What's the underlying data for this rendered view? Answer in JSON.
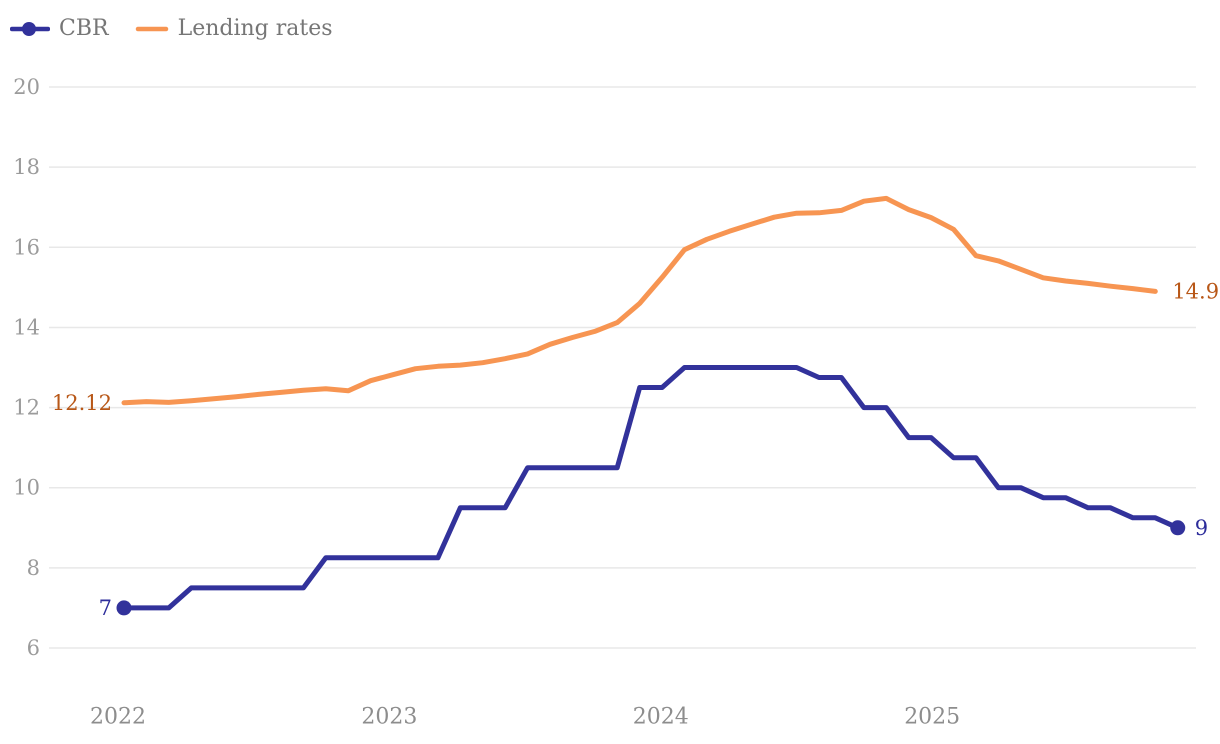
{
  "legend": {
    "items": [
      {
        "label": "CBR"
      },
      {
        "label": "Lending rates"
      }
    ]
  },
  "axis": {
    "tick_label_color": "#9B9B9B",
    "year_label_color": "#8D8D8D",
    "grid_color": "#E8E8E8"
  },
  "chart_data": {
    "type": "line",
    "title": "",
    "x_start": "2022-01",
    "x_frequency": "monthly",
    "x_tick_labels": [
      "2022",
      "2023",
      "2024",
      "2025"
    ],
    "y_ticks": [
      6,
      8,
      10,
      12,
      14,
      16,
      18,
      20
    ],
    "y_range": [
      6,
      20
    ],
    "grid": "horizontal",
    "legend_position": "top-left",
    "background": "#ffffff",
    "series": [
      {
        "name": "CBR",
        "color": "#32329B",
        "label_color": "#2D2D9B",
        "start_label": "7",
        "end_label": "9",
        "markers": "first-last",
        "values": [
          7,
          7,
          7,
          7.5,
          7.5,
          7.5,
          7.5,
          7.5,
          7.5,
          8.25,
          8.25,
          8.25,
          8.25,
          8.25,
          8.25,
          9.5,
          9.5,
          9.5,
          10.5,
          10.5,
          10.5,
          10.5,
          10.5,
          12.5,
          12.5,
          13,
          13,
          13,
          13,
          13,
          13,
          12.75,
          12.75,
          12,
          12,
          11.25,
          11.25,
          10.75,
          10.75,
          10,
          10,
          9.75,
          9.75,
          9.5,
          9.5,
          9.25,
          9.25,
          9
        ]
      },
      {
        "name": "Lending rates",
        "color": "#F79552",
        "label_color": "#B85717",
        "start_label": "12.12",
        "end_label": "14.9",
        "markers": "none",
        "values": [
          12.12,
          12.15,
          12.13,
          12.17,
          12.22,
          12.27,
          12.33,
          12.38,
          12.43,
          12.47,
          12.42,
          12.67,
          12.82,
          12.97,
          13.03,
          13.06,
          13.12,
          13.22,
          13.34,
          13.58,
          13.75,
          13.9,
          14.12,
          14.6,
          15.25,
          15.94,
          16.2,
          16.4,
          16.58,
          16.75,
          16.85,
          16.86,
          16.92,
          17.15,
          17.22,
          16.94,
          16.74,
          16.45,
          15.79,
          15.66,
          15.45,
          15.24,
          15.16,
          15.1,
          15.03,
          14.97,
          14.9
        ]
      }
    ]
  }
}
